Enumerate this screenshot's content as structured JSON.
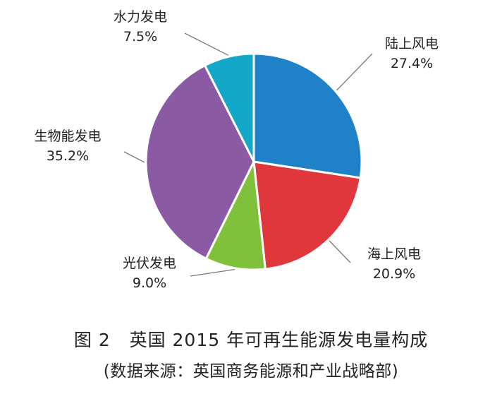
{
  "chart_data": {
    "type": "pie",
    "categories": [
      "陆上风电",
      "海上风电",
      "光伏发电",
      "生物能发电",
      "水力发电"
    ],
    "values": [
      27.4,
      20.9,
      9.0,
      35.2,
      7.5
    ],
    "value_labels": [
      "27.4%",
      "20.9%",
      "9.0%",
      "35.2%",
      "7.5%"
    ],
    "colors": [
      "#1f82c8",
      "#e0373c",
      "#80c13b",
      "#8a5aa5",
      "#13a8c9"
    ],
    "start_angle_deg": 0,
    "direction": "clockwise"
  },
  "caption": {
    "figure_label": "图 2",
    "title": "英国 2015 年可再生能源发电量构成",
    "source": "(数据来源：英国商务能源和产业战略部)"
  }
}
